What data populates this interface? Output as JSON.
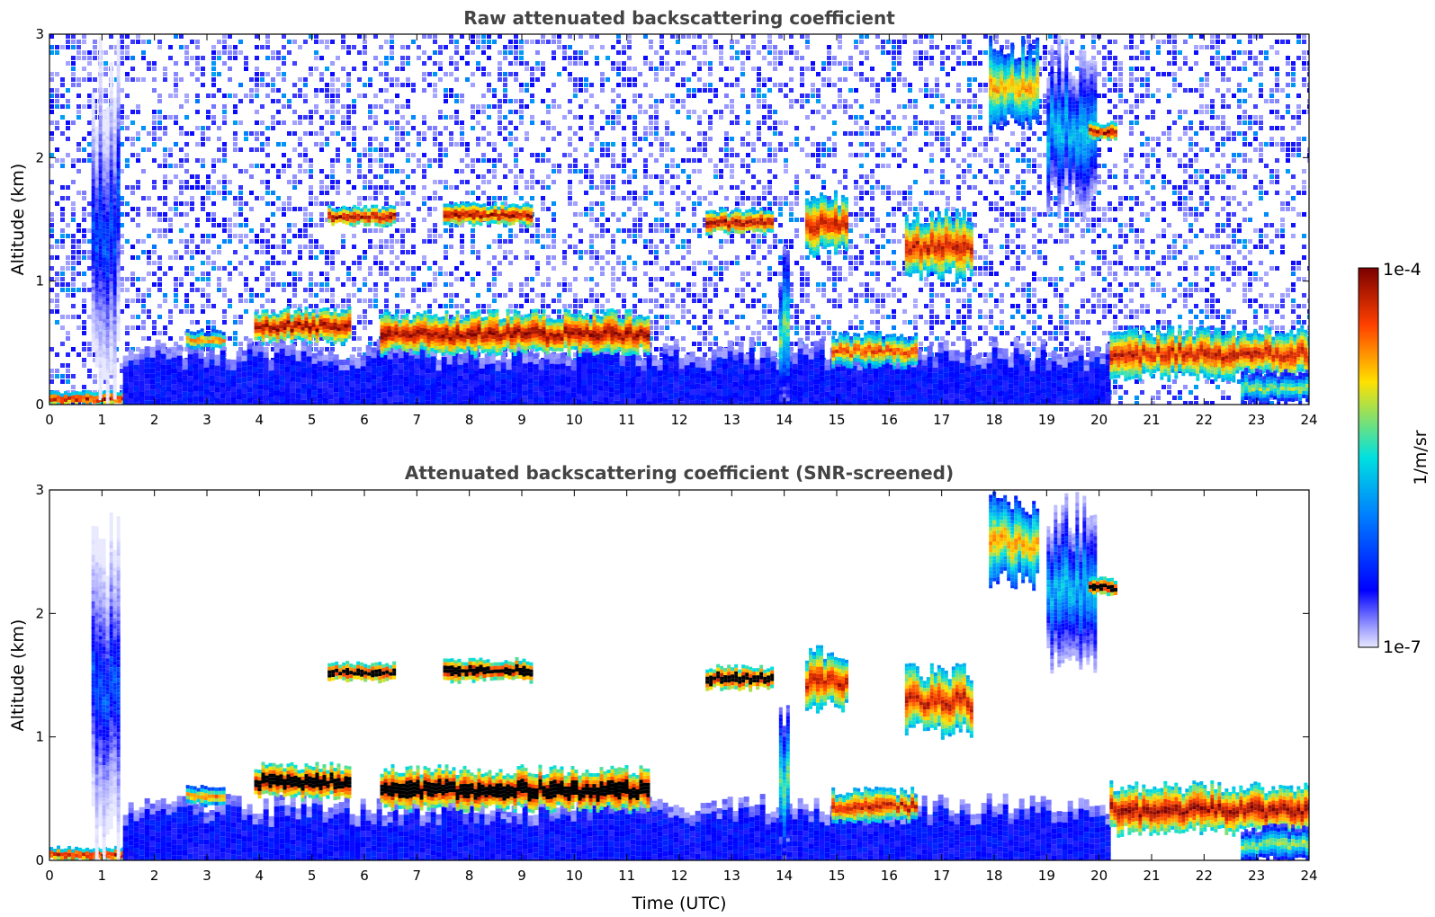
{
  "chart_data": [
    {
      "type": "heatmap",
      "title": "Raw attenuated backscattering coefficient",
      "xlabel": "",
      "ylabel": "Altitude (km)",
      "xlim": [
        0,
        24
      ],
      "ylim": [
        0,
        3
      ],
      "xticks": [
        "0",
        "1",
        "2",
        "3",
        "4",
        "5",
        "6",
        "7",
        "8",
        "9",
        "10",
        "11",
        "12",
        "13",
        "14",
        "15",
        "16",
        "17",
        "18",
        "19",
        "20",
        "21",
        "22",
        "23",
        "24"
      ],
      "yticks": [
        "0",
        "1",
        "2",
        "3"
      ],
      "screened": false,
      "features": [
        {
          "kind": "surface",
          "x": [
            0,
            1.6
          ],
          "y": [
            0,
            0.12
          ],
          "level": 0.95
        },
        {
          "kind": "boundary_layer",
          "x": [
            1.4,
            20.2
          ],
          "y": [
            0,
            0.55
          ],
          "level": 0.25
        },
        {
          "kind": "aerosol_column",
          "x": [
            0.8,
            1.3
          ],
          "y": [
            0,
            3.0
          ],
          "level": 0.35
        },
        {
          "kind": "cloud",
          "x": [
            3.9,
            5.7
          ],
          "y": [
            0.5,
            0.8
          ],
          "level": 0.95
        },
        {
          "kind": "cloud",
          "x": [
            6.3,
            11.4
          ],
          "y": [
            0.4,
            0.78
          ],
          "level": 0.95
        },
        {
          "kind": "cloud",
          "x": [
            2.6,
            3.3
          ],
          "y": [
            0.45,
            0.62
          ],
          "level": 0.8
        },
        {
          "kind": "cloud",
          "x": [
            5.3,
            6.6
          ],
          "y": [
            1.45,
            1.62
          ],
          "level": 0.95
        },
        {
          "kind": "cloud",
          "x": [
            7.5,
            9.2
          ],
          "y": [
            1.45,
            1.65
          ],
          "level": 0.95
        },
        {
          "kind": "cloud",
          "x": [
            12.5,
            13.8
          ],
          "y": [
            1.38,
            1.6
          ],
          "level": 0.95
        },
        {
          "kind": "cloud",
          "x": [
            14.4,
            15.2
          ],
          "y": [
            1.2,
            1.75
          ],
          "level": 0.9
        },
        {
          "kind": "cloud",
          "x": [
            16.3,
            17.6
          ],
          "y": [
            1.0,
            1.6
          ],
          "level": 0.9
        },
        {
          "kind": "cloud",
          "x": [
            14.9,
            16.5
          ],
          "y": [
            0.3,
            0.6
          ],
          "level": 0.85
        },
        {
          "kind": "cloud",
          "x": [
            17.9,
            18.8
          ],
          "y": [
            2.2,
            3.0
          ],
          "level": 0.75
        },
        {
          "kind": "cloud",
          "x": [
            19.0,
            19.9
          ],
          "y": [
            1.5,
            3.0
          ],
          "level": 0.5
        },
        {
          "kind": "cloud",
          "x": [
            19.8,
            20.3
          ],
          "y": [
            2.15,
            2.3
          ],
          "level": 0.95
        },
        {
          "kind": "cloud",
          "x": [
            20.2,
            24.0
          ],
          "y": [
            0.2,
            0.65
          ],
          "level": 0.9
        },
        {
          "kind": "precipitation",
          "x": [
            22.7,
            24.0
          ],
          "y": [
            0,
            0.3
          ],
          "level": 0.65
        },
        {
          "kind": "precipitation",
          "x": [
            13.9,
            14.1
          ],
          "y": [
            0,
            1.3
          ],
          "level": 0.6
        }
      ]
    },
    {
      "type": "heatmap",
      "title": "Attenuated backscattering coefficient (SNR-screened)",
      "xlabel": "Time (UTC)",
      "ylabel": "Altitude (km)",
      "xlim": [
        0,
        24
      ],
      "ylim": [
        0,
        3
      ],
      "xticks": [
        "0",
        "1",
        "2",
        "3",
        "4",
        "5",
        "6",
        "7",
        "8",
        "9",
        "10",
        "11",
        "12",
        "13",
        "14",
        "15",
        "16",
        "17",
        "18",
        "19",
        "20",
        "21",
        "22",
        "23",
        "24"
      ],
      "yticks": [
        "0",
        "1",
        "2",
        "3"
      ],
      "screened": true,
      "features": [
        {
          "kind": "surface",
          "x": [
            0,
            1.6
          ],
          "y": [
            0,
            0.12
          ],
          "level": 0.95
        },
        {
          "kind": "boundary_layer",
          "x": [
            1.4,
            20.2
          ],
          "y": [
            0,
            0.55
          ],
          "level": 0.25
        },
        {
          "kind": "aerosol_column",
          "x": [
            0.8,
            1.3
          ],
          "y": [
            0,
            3.0
          ],
          "level": 0.35
        },
        {
          "kind": "cloud",
          "x": [
            3.9,
            5.7
          ],
          "y": [
            0.5,
            0.8
          ],
          "level": 1.0
        },
        {
          "kind": "cloud",
          "x": [
            6.3,
            11.4
          ],
          "y": [
            0.4,
            0.78
          ],
          "level": 1.0
        },
        {
          "kind": "cloud",
          "x": [
            2.6,
            3.3
          ],
          "y": [
            0.45,
            0.62
          ],
          "level": 0.8
        },
        {
          "kind": "cloud",
          "x": [
            5.3,
            6.6
          ],
          "y": [
            1.45,
            1.62
          ],
          "level": 1.0
        },
        {
          "kind": "cloud",
          "x": [
            7.5,
            9.2
          ],
          "y": [
            1.45,
            1.65
          ],
          "level": 1.0
        },
        {
          "kind": "cloud",
          "x": [
            12.5,
            13.8
          ],
          "y": [
            1.38,
            1.6
          ],
          "level": 1.0
        },
        {
          "kind": "cloud",
          "x": [
            14.4,
            15.2
          ],
          "y": [
            1.2,
            1.75
          ],
          "level": 0.9
        },
        {
          "kind": "cloud",
          "x": [
            16.3,
            17.6
          ],
          "y": [
            1.0,
            1.6
          ],
          "level": 0.9
        },
        {
          "kind": "cloud",
          "x": [
            14.9,
            16.5
          ],
          "y": [
            0.3,
            0.6
          ],
          "level": 0.9
        },
        {
          "kind": "cloud",
          "x": [
            17.9,
            18.8
          ],
          "y": [
            2.2,
            3.0
          ],
          "level": 0.75
        },
        {
          "kind": "cloud",
          "x": [
            19.0,
            19.9
          ],
          "y": [
            1.5,
            3.0
          ],
          "level": 0.5
        },
        {
          "kind": "cloud",
          "x": [
            19.8,
            20.3
          ],
          "y": [
            2.15,
            2.3
          ],
          "level": 1.0
        },
        {
          "kind": "cloud",
          "x": [
            20.2,
            24.0
          ],
          "y": [
            0.2,
            0.65
          ],
          "level": 0.95
        },
        {
          "kind": "precipitation",
          "x": [
            22.7,
            24.0
          ],
          "y": [
            0,
            0.3
          ],
          "level": 0.65
        },
        {
          "kind": "precipitation",
          "x": [
            13.9,
            14.1
          ],
          "y": [
            0,
            1.3
          ],
          "level": 0.6
        }
      ]
    }
  ],
  "colorbar": {
    "label": "1/m/sr",
    "min_label": "1e-7",
    "max_label": "1e-4",
    "colors": [
      "#e8e8ff",
      "#a0a0ff",
      "#0000ff",
      "#0080ff",
      "#00e0e0",
      "#ffe000",
      "#ff4000",
      "#7a0000"
    ]
  }
}
